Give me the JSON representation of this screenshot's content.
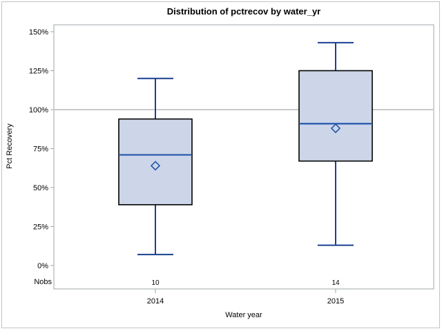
{
  "title": "Distribution of pctrecov by water_yr",
  "y_axis": {
    "label": "Pct Recovery",
    "tick_suffix": "%"
  },
  "x_axis": {
    "label": "Water year"
  },
  "nobs_label": "Nobs",
  "colors": {
    "box_fill": "#ccd6e8",
    "box_border": "#000000",
    "median_line": "#2255ab",
    "whisker_line": "#1a3f8f",
    "mean_marker": "#2255ab",
    "reference_line": "#a9a9a9",
    "frame": "#9ea4aa",
    "text": "#000000",
    "outer_border": "#bfc3c6"
  },
  "chart_data": {
    "type": "boxplot",
    "title": "Distribution of pctrecov by water_yr",
    "xlabel": "Water year",
    "ylabel": "Pct Recovery",
    "ylim": [
      0,
      150
    ],
    "yticks": [
      0,
      25,
      50,
      75,
      100,
      125,
      150
    ],
    "ytick_format": "percent",
    "reference_line_y": 100,
    "grid": false,
    "legend": false,
    "categories": [
      "2014",
      "2015"
    ],
    "nobs": [
      "10",
      "14"
    ],
    "series": [
      {
        "category": "2014",
        "nobs": 10,
        "whisker_low": 7,
        "q1": 39,
        "median": 71,
        "mean": 64,
        "q3": 94,
        "whisker_high": 120
      },
      {
        "category": "2015",
        "nobs": 14,
        "whisker_low": 13,
        "q1": 67,
        "median": 91,
        "mean": 88,
        "q3": 125,
        "whisker_high": 143
      }
    ]
  }
}
